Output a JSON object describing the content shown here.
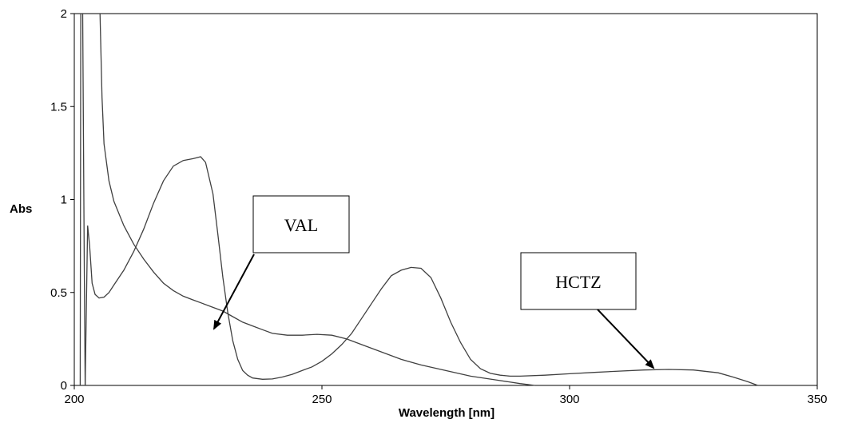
{
  "chart_data": {
    "type": "line",
    "title": "",
    "xlabel": "Wavelength [nm]",
    "ylabel": "Abs",
    "xlim": [
      200,
      350
    ],
    "ylim": [
      0,
      2
    ],
    "x_ticks": [
      200,
      250,
      300,
      350
    ],
    "y_ticks": [
      0,
      0.5,
      1,
      1.5,
      2
    ],
    "y_tick_labels": [
      "0",
      "0.5",
      "1",
      "1.5",
      "2"
    ],
    "grid": false,
    "line_color": "#404040",
    "series": [
      {
        "name": "VAL",
        "x": [
          205.2,
          205.6,
          206,
          207,
          208,
          210,
          212,
          214,
          216,
          218,
          220,
          222,
          224,
          226,
          228,
          230,
          232,
          234,
          236,
          238,
          240,
          243,
          246,
          249,
          252,
          255,
          258,
          262,
          266,
          270,
          275,
          280,
          285,
          290,
          293
        ],
        "y": [
          2.0,
          1.55,
          1.3,
          1.1,
          0.99,
          0.86,
          0.76,
          0.68,
          0.61,
          0.55,
          0.51,
          0.48,
          0.46,
          0.44,
          0.42,
          0.4,
          0.37,
          0.34,
          0.32,
          0.3,
          0.28,
          0.27,
          0.27,
          0.275,
          0.27,
          0.25,
          0.22,
          0.18,
          0.14,
          0.11,
          0.08,
          0.05,
          0.03,
          0.01,
          0.0
        ]
      },
      {
        "name": "HCTZ",
        "x": [
          202.2,
          202.7,
          203.1,
          203.6,
          204.2,
          205,
          206,
          207,
          208,
          210,
          212,
          214,
          216,
          218,
          220,
          222,
          224,
          225.5,
          226.5,
          228,
          229,
          230,
          231,
          232,
          233,
          234,
          235,
          236,
          238,
          240,
          242,
          244,
          246,
          248,
          250,
          252,
          254,
          256,
          258,
          260,
          262,
          264,
          266,
          268,
          270,
          272,
          274,
          276,
          278,
          280,
          282,
          284,
          286,
          288,
          290,
          295,
          300,
          305,
          310,
          315,
          320,
          325,
          330,
          333,
          336,
          338
        ],
        "y": [
          0.0,
          0.86,
          0.75,
          0.55,
          0.49,
          0.47,
          0.475,
          0.5,
          0.54,
          0.62,
          0.72,
          0.84,
          0.98,
          1.1,
          1.18,
          1.21,
          1.22,
          1.23,
          1.2,
          1.03,
          0.81,
          0.58,
          0.39,
          0.24,
          0.14,
          0.08,
          0.055,
          0.04,
          0.033,
          0.035,
          0.045,
          0.06,
          0.08,
          0.1,
          0.13,
          0.17,
          0.22,
          0.28,
          0.36,
          0.44,
          0.52,
          0.59,
          0.62,
          0.635,
          0.63,
          0.58,
          0.47,
          0.34,
          0.23,
          0.14,
          0.09,
          0.065,
          0.055,
          0.05,
          0.05,
          0.055,
          0.063,
          0.07,
          0.077,
          0.083,
          0.086,
          0.083,
          0.068,
          0.045,
          0.02,
          0.0
        ]
      }
    ],
    "spikes": [
      {
        "x": [
          201.2,
          201.3,
          201.5
        ],
        "y": [
          0.0,
          2.0,
          2.0
        ]
      },
      {
        "x": [
          201.7,
          202.0,
          202.2
        ],
        "y": [
          2.0,
          0.7,
          0.0
        ]
      }
    ],
    "annotations": [
      {
        "label": "VAL",
        "arrow_to": [
          229,
          0.3
        ]
      },
      {
        "label": "HCTZ",
        "arrow_to": [
          318,
          0.1
        ]
      }
    ]
  }
}
